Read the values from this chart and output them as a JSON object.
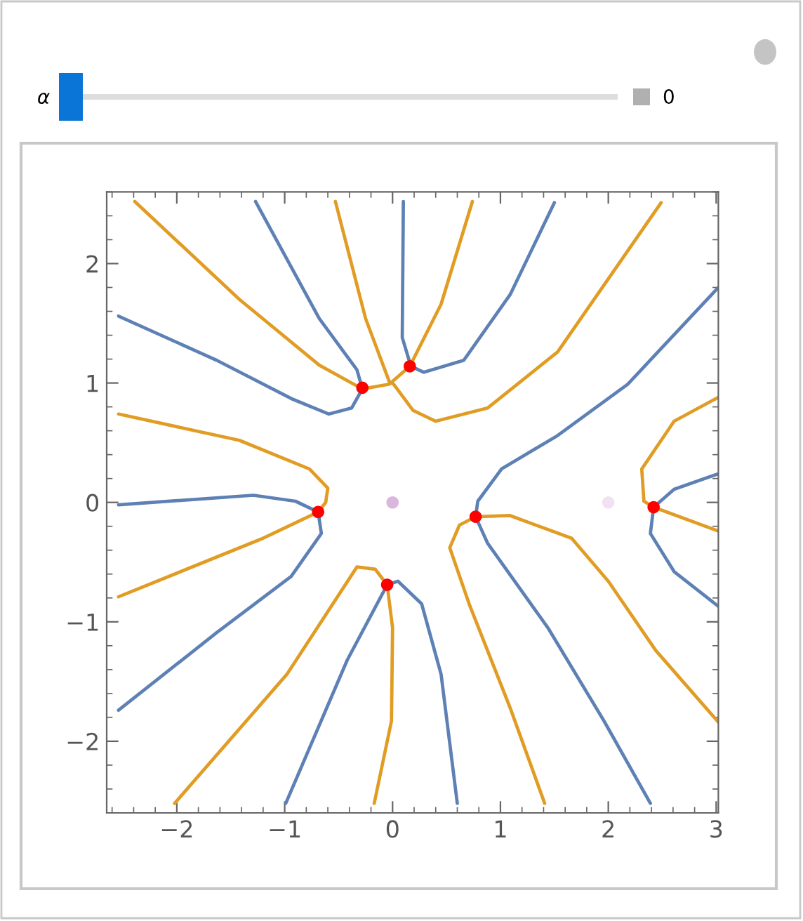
{
  "chart_data": {
    "type": "line",
    "xlim": [
      -2.65,
      3.02
    ],
    "ylim": [
      -2.6,
      2.6
    ],
    "xticks": [
      {
        "value": -2,
        "label": "−2"
      },
      {
        "value": -1,
        "label": "−1"
      },
      0,
      1,
      2,
      3
    ],
    "yticks": [
      {
        "value": -2,
        "label": "−2"
      },
      {
        "value": -1,
        "label": "−1"
      },
      0,
      1,
      2
    ],
    "grid": false,
    "legend": false,
    "line_style": "solid",
    "annotations": [
      "α",
      "0"
    ],
    "series": [
      {
        "type": "line",
        "color": "#5e81b5",
        "x": [
          -2.54,
          -1.63,
          -0.94,
          -0.59,
          -0.38,
          -0.28,
          -0.33,
          -0.68,
          -1.27
        ],
        "values": [
          1.56,
          1.19,
          0.87,
          0.74,
          0.79,
          0.95,
          1.11,
          1.54,
          2.52
        ]
      },
      {
        "type": "line",
        "color": "#e19c24",
        "x": [
          -2.39,
          -1.42,
          -0.68,
          -0.28,
          -0.03,
          0.16,
          0.45,
          0.74
        ],
        "values": [
          2.52,
          1.7,
          1.15,
          0.95,
          0.99,
          1.14,
          1.66,
          2.52
        ]
      },
      {
        "type": "line",
        "color": "#e19c24",
        "x": [
          -0.53,
          -0.25,
          -0.03,
          0.01,
          0.19,
          0.4,
          0.88,
          1.53,
          2.49
        ],
        "values": [
          2.52,
          1.54,
          1.01,
          0.99,
          0.77,
          0.68,
          0.79,
          1.26,
          2.51
        ]
      },
      {
        "type": "line",
        "color": "#5e81b5",
        "x": [
          0.1,
          0.09,
          0.17,
          0.29,
          0.66,
          1.09,
          1.5
        ],
        "values": [
          2.52,
          1.38,
          1.14,
          1.09,
          1.19,
          1.74,
          2.51
        ]
      },
      {
        "type": "line",
        "color": "#5e81b5",
        "x": [
          3.02,
          2.18,
          1.53,
          1.01,
          0.79,
          0.77,
          0.88,
          1.44,
          1.96,
          2.39
        ],
        "values": [
          1.8,
          0.99,
          0.56,
          0.28,
          0.01,
          -0.12,
          -0.34,
          -1.05,
          -1.83,
          -2.52
        ]
      },
      {
        "type": "line",
        "color": "#e19c24",
        "x": [
          1.41,
          1.09,
          0.71,
          0.53,
          0.62,
          0.77,
          1.09,
          1.66,
          2.0,
          2.44,
          3.02
        ],
        "values": [
          -2.52,
          -1.72,
          -0.85,
          -0.38,
          -0.19,
          -0.12,
          -0.11,
          -0.3,
          -0.66,
          -1.24,
          -1.84
        ]
      },
      {
        "type": "line",
        "color": "#e19c24",
        "x": [
          3.02,
          2.61,
          2.31,
          2.33,
          2.42,
          3.02
        ],
        "values": [
          0.88,
          0.68,
          0.28,
          0.01,
          -0.04,
          -0.24
        ]
      },
      {
        "type": "line",
        "color": "#5e81b5",
        "x": [
          3.02,
          2.61,
          2.42,
          2.39,
          2.61,
          3.02
        ],
        "values": [
          0.24,
          0.11,
          -0.04,
          -0.26,
          -0.58,
          -0.87
        ]
      },
      {
        "type": "line",
        "color": "#e19c24",
        "x": [
          -2.54,
          -1.42,
          -0.77,
          -0.6,
          -0.62,
          -0.69,
          -1.2,
          -2.54
        ],
        "values": [
          0.74,
          0.52,
          0.28,
          0.12,
          0.0,
          -0.08,
          -0.3,
          -0.79
        ]
      },
      {
        "type": "line",
        "color": "#5e81b5",
        "x": [
          -2.54,
          -1.29,
          -0.9,
          -0.69,
          -0.66,
          -0.94,
          -1.63,
          -2.54
        ],
        "values": [
          -0.02,
          0.06,
          0.01,
          -0.08,
          -0.26,
          -0.62,
          -1.09,
          -1.74
        ]
      },
      {
        "type": "line",
        "color": "#e19c24",
        "x": [
          -2.02,
          -0.98,
          -0.33,
          -0.16,
          -0.05,
          0.0,
          -0.01,
          -0.17
        ],
        "values": [
          -2.52,
          -1.44,
          -0.54,
          -0.56,
          -0.69,
          -1.05,
          -1.83,
          -2.52
        ]
      },
      {
        "type": "line",
        "color": "#5e81b5",
        "x": [
          -0.99,
          -0.42,
          -0.05,
          0.05,
          0.27,
          0.45,
          0.6
        ],
        "values": [
          -2.52,
          -1.32,
          -0.69,
          -0.66,
          -0.85,
          -1.44,
          -2.52
        ]
      },
      {
        "type": "scatter",
        "marker": "circle",
        "color": "#dbb6dd",
        "x": [
          0
        ],
        "values": [
          0
        ]
      },
      {
        "type": "scatter",
        "marker": "circle",
        "color": "#f0e2f1",
        "x": [
          2
        ],
        "values": [
          0
        ]
      },
      {
        "type": "scatter",
        "marker": "circle",
        "color": "#ff0000",
        "x": [
          -0.28,
          0.16,
          -0.69,
          0.77,
          -0.05,
          2.42
        ],
        "values": [
          0.96,
          1.14,
          -0.08,
          -0.12,
          -0.69,
          -0.04
        ]
      }
    ]
  }
}
